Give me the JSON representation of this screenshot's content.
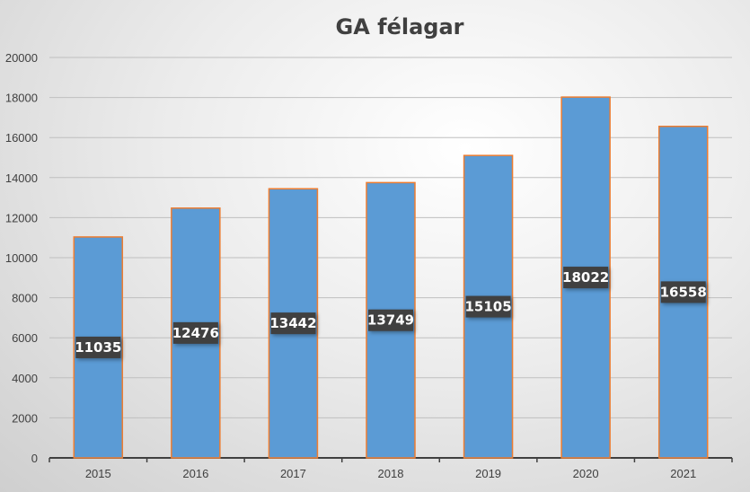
{
  "chart_data": {
    "type": "bar",
    "title": "GA félagar",
    "categories": [
      "2015",
      "2016",
      "2017",
      "2018",
      "2019",
      "2020",
      "2021"
    ],
    "values": [
      11035,
      12476,
      13442,
      13749,
      15105,
      18022,
      16558
    ],
    "ylim": [
      0,
      20000
    ],
    "yticks": [
      0,
      2000,
      4000,
      6000,
      8000,
      10000,
      12000,
      14000,
      16000,
      18000,
      20000
    ],
    "grid": true,
    "legend": "none",
    "data_labels": true,
    "colors": {
      "bar": "#5b9bd5",
      "bar_border": "#ed7d31",
      "label_bg": "#404040",
      "grid": "#bfbfbf"
    }
  }
}
